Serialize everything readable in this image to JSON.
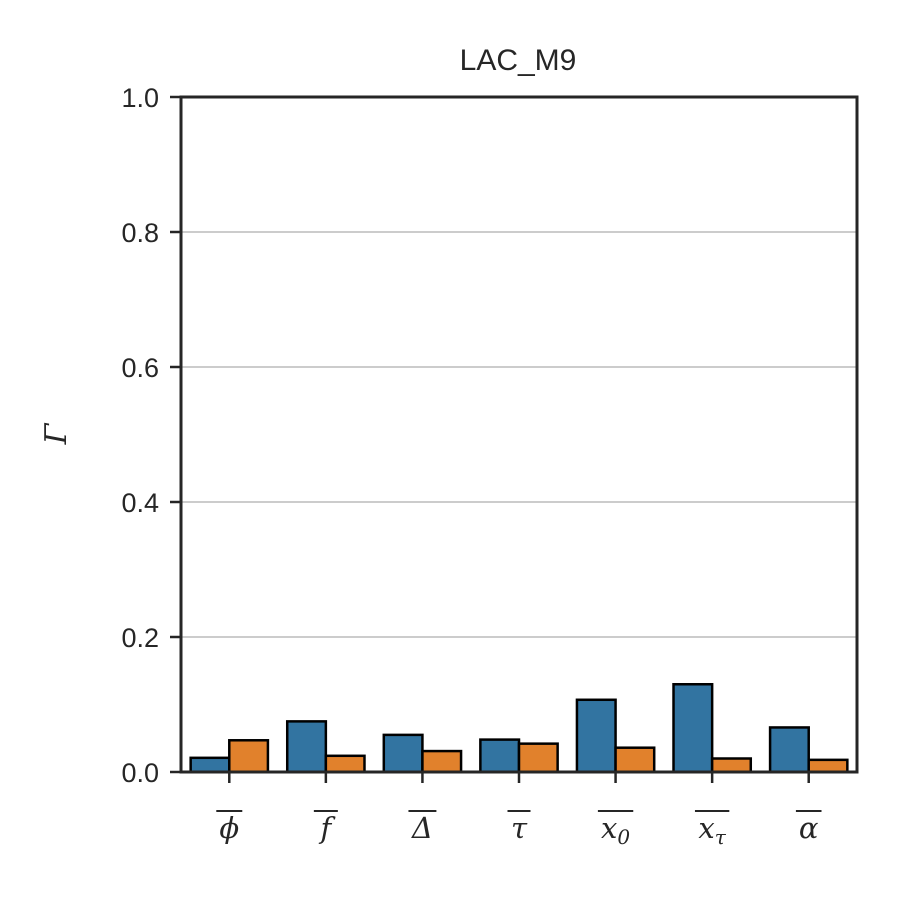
{
  "chart_data": {
    "type": "bar",
    "title": "LAC_M9",
    "ylabel": "Γ",
    "xlabel": "",
    "ylim": [
      0,
      1.0
    ],
    "yticks": [
      "0.0",
      "0.2",
      "0.4",
      "0.6",
      "0.8",
      "1.0"
    ],
    "grid": "horizontal",
    "categories": [
      {
        "main": "ϕ",
        "sub": ""
      },
      {
        "main": "f",
        "sub": ""
      },
      {
        "main": "Δ",
        "sub": ""
      },
      {
        "main": "τ",
        "sub": ""
      },
      {
        "main": "x",
        "sub": "0"
      },
      {
        "main": "x",
        "sub": "τ"
      },
      {
        "main": "α",
        "sub": ""
      }
    ],
    "series": [
      {
        "color": "#3274a1",
        "values": [
          0.021,
          0.075,
          0.055,
          0.048,
          0.107,
          0.13,
          0.066
        ]
      },
      {
        "color": "#e1812c",
        "values": [
          0.047,
          0.024,
          0.031,
          0.042,
          0.036,
          0.02,
          0.018
        ]
      }
    ]
  }
}
